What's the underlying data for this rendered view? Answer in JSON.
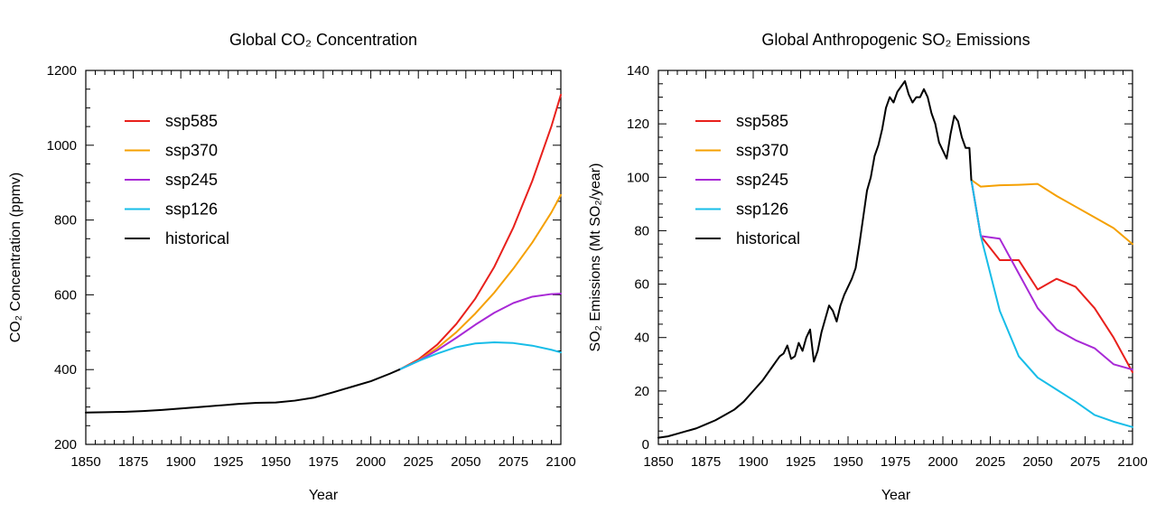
{
  "chart_data": [
    {
      "type": "line",
      "title": "Global CO₂ Concentration",
      "xlabel": "Year",
      "ylabel": "CO₂ Concentration (ppmv)",
      "xlim": [
        1850,
        2100
      ],
      "ylim": [
        200,
        1200
      ],
      "xticks": [
        1850,
        1875,
        1900,
        1925,
        1950,
        1975,
        2000,
        2025,
        2050,
        2075,
        2100
      ],
      "yticks": [
        200,
        400,
        600,
        800,
        1000,
        1200
      ],
      "legend_position": "top-left",
      "series": [
        {
          "name": "ssp585",
          "color": "#e8201c",
          "x": [
            2015,
            2025,
            2035,
            2045,
            2055,
            2065,
            2075,
            2085,
            2095,
            2100
          ],
          "y": [
            400,
            427,
            467,
            522,
            590,
            675,
            780,
            905,
            1050,
            1135
          ]
        },
        {
          "name": "ssp370",
          "color": "#f5a000",
          "x": [
            2015,
            2025,
            2035,
            2045,
            2055,
            2065,
            2075,
            2085,
            2095,
            2100
          ],
          "y": [
            400,
            424,
            458,
            500,
            550,
            606,
            670,
            740,
            820,
            867
          ]
        },
        {
          "name": "ssp245",
          "color": "#a829d6",
          "x": [
            2015,
            2025,
            2035,
            2045,
            2055,
            2065,
            2075,
            2085,
            2095,
            2100
          ],
          "y": [
            400,
            423,
            452,
            485,
            520,
            552,
            578,
            595,
            602,
            603
          ]
        },
        {
          "name": "ssp126",
          "color": "#17bde8",
          "x": [
            2015,
            2025,
            2035,
            2045,
            2055,
            2065,
            2075,
            2085,
            2095,
            2100
          ],
          "y": [
            400,
            423,
            443,
            460,
            470,
            473,
            471,
            464,
            453,
            446
          ]
        },
        {
          "name": "historical",
          "color": "#000000",
          "x": [
            1850,
            1860,
            1870,
            1880,
            1890,
            1900,
            1910,
            1920,
            1930,
            1940,
            1950,
            1960,
            1970,
            1980,
            1990,
            2000,
            2010,
            2015
          ],
          "y": [
            285,
            286,
            287,
            289,
            292,
            296,
            300,
            304,
            308,
            311,
            312,
            317,
            325,
            339,
            354,
            369,
            389,
            400
          ]
        }
      ]
    },
    {
      "type": "line",
      "title": "Global Anthropogenic SO₂  Emissions",
      "xlabel": "Year",
      "ylabel": "SO₂ Emissions (Mt SO₂/year)",
      "xlim": [
        1850,
        2100
      ],
      "ylim": [
        0,
        140
      ],
      "xticks": [
        1850,
        1875,
        1900,
        1925,
        1950,
        1975,
        2000,
        2025,
        2050,
        2075,
        2100
      ],
      "yticks": [
        0,
        20,
        40,
        60,
        80,
        100,
        120,
        140
      ],
      "legend_position": "top-left",
      "series": [
        {
          "name": "ssp585",
          "color": "#e8201c",
          "x": [
            2015,
            2020,
            2030,
            2040,
            2050,
            2060,
            2070,
            2080,
            2090,
            2100
          ],
          "y": [
            99,
            78,
            69,
            69,
            58,
            62,
            59,
            51,
            40,
            27
          ]
        },
        {
          "name": "ssp370",
          "color": "#f5a000",
          "x": [
            2015,
            2020,
            2030,
            2040,
            2050,
            2060,
            2070,
            2080,
            2090,
            2100
          ],
          "y": [
            99,
            96.5,
            97,
            97.2,
            97.5,
            93,
            89,
            85,
            81,
            75
          ]
        },
        {
          "name": "ssp245",
          "color": "#a829d6",
          "x": [
            2015,
            2020,
            2030,
            2040,
            2050,
            2060,
            2070,
            2080,
            2090,
            2100
          ],
          "y": [
            99,
            78,
            77,
            64,
            51,
            43,
            39,
            36,
            30,
            28
          ]
        },
        {
          "name": "ssp126",
          "color": "#17bde8",
          "x": [
            2015,
            2020,
            2030,
            2040,
            2050,
            2060,
            2070,
            2080,
            2090,
            2100
          ],
          "y": [
            99,
            78,
            50,
            33,
            25,
            20.5,
            16,
            11,
            8.5,
            6.5
          ]
        },
        {
          "name": "historical",
          "color": "#000000",
          "x": [
            1850,
            1855,
            1860,
            1865,
            1870,
            1875,
            1880,
            1885,
            1890,
            1895,
            1900,
            1905,
            1910,
            1912,
            1914,
            1916,
            1918,
            1920,
            1922,
            1924,
            1926,
            1928,
            1930,
            1932,
            1934,
            1936,
            1938,
            1940,
            1942,
            1944,
            1946,
            1948,
            1950,
            1952,
            1954,
            1956,
            1958,
            1960,
            1962,
            1964,
            1966,
            1968,
            1970,
            1972,
            1974,
            1976,
            1978,
            1980,
            1982,
            1984,
            1986,
            1988,
            1990,
            1992,
            1994,
            1996,
            1998,
            2000,
            2002,
            2004,
            2006,
            2008,
            2010,
            2012,
            2014,
            2015
          ],
          "y": [
            2.5,
            3,
            4,
            5,
            6,
            7.5,
            9,
            11,
            13,
            16,
            20,
            24,
            29,
            31,
            33,
            34,
            37,
            32,
            33,
            38,
            35,
            40,
            43,
            31,
            35,
            42,
            47,
            52,
            50,
            46,
            52,
            56,
            59,
            62,
            66,
            75,
            85,
            95,
            100,
            108,
            112,
            118,
            126,
            130,
            128,
            132,
            134,
            136,
            131,
            128,
            130,
            130,
            133,
            130,
            124,
            120,
            113,
            110,
            107,
            116,
            123,
            121,
            115,
            111,
            111,
            99
          ]
        }
      ]
    }
  ]
}
